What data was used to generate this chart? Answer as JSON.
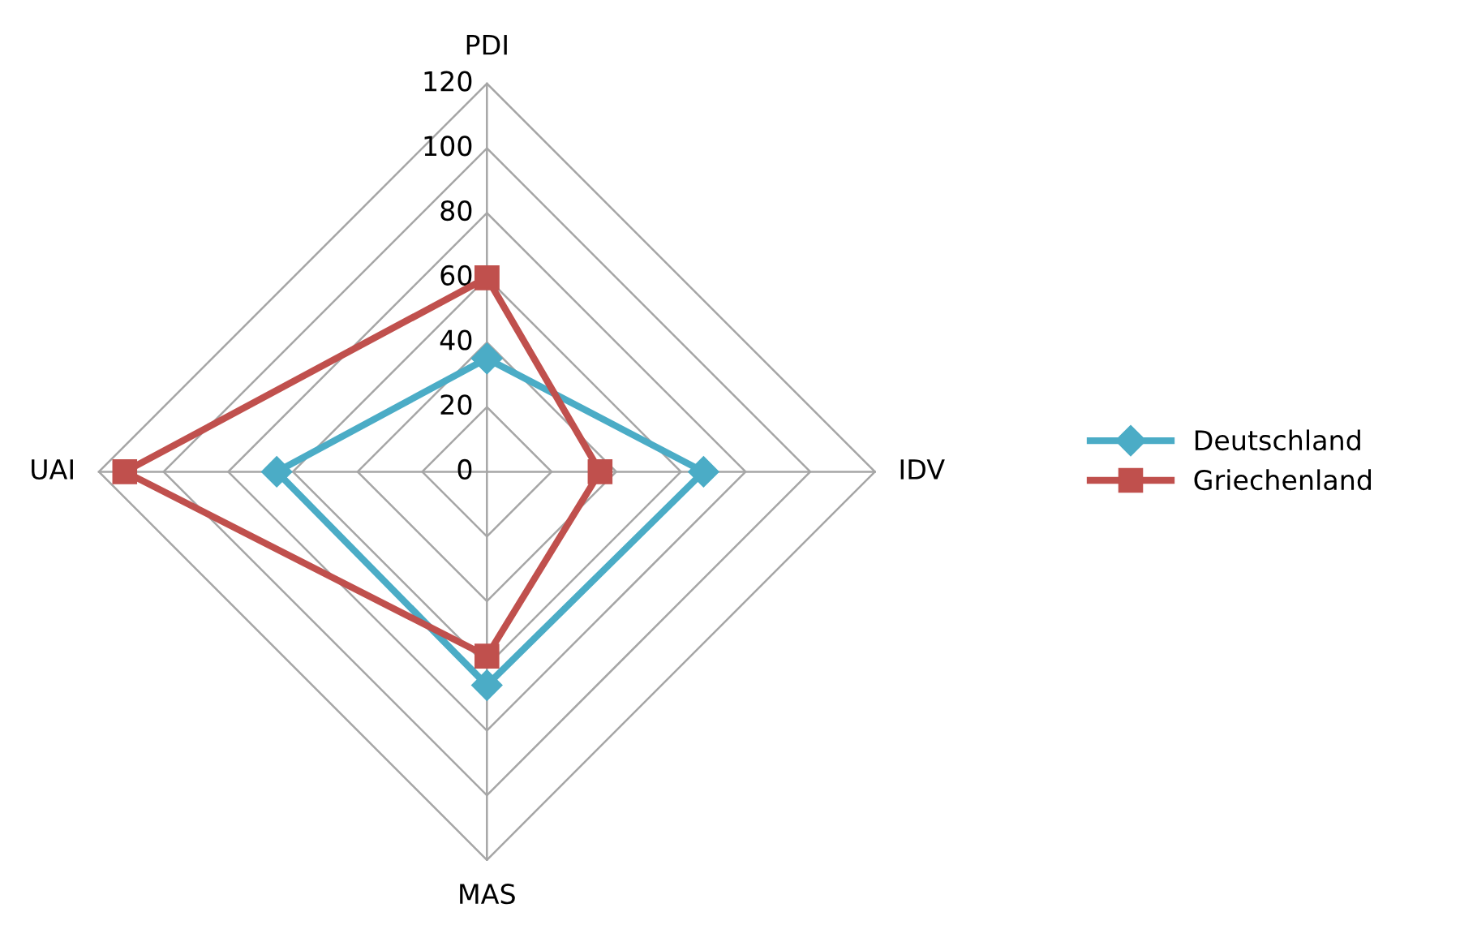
{
  "chart_data": {
    "type": "radar",
    "categories": [
      "PDI",
      "IDV",
      "MAS",
      "UAI"
    ],
    "series": [
      {
        "name": "Deutschland",
        "color": "#4bacc6",
        "values": [
          35,
          67,
          66,
          65
        ],
        "marker": "diamond"
      },
      {
        "name": "Griechenland",
        "color": "#c0504d",
        "values": [
          60,
          35,
          57,
          112
        ],
        "marker": "square"
      }
    ],
    "ylim": [
      0,
      120
    ],
    "yticks": [
      0,
      20,
      40,
      60,
      80,
      100,
      120
    ],
    "grid": true,
    "legend": "right",
    "line_style": "solid"
  }
}
